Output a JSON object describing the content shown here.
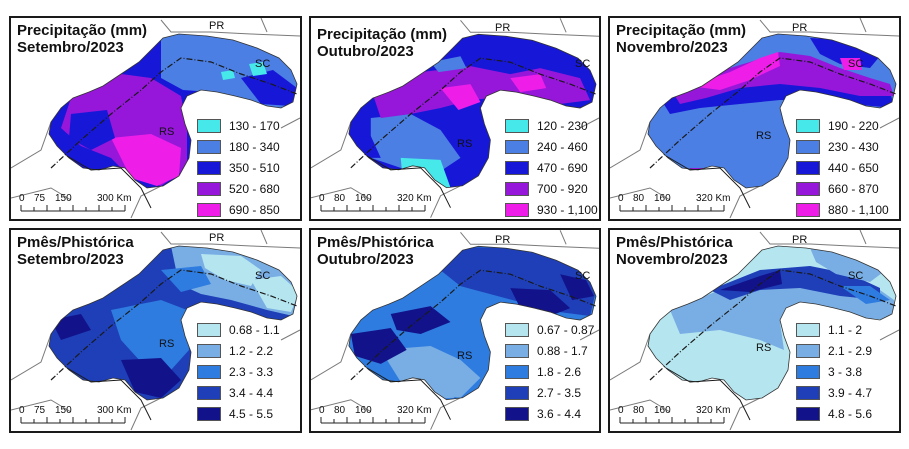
{
  "colors": {
    "p1": "#46e8ea",
    "p2": "#4b7fe3",
    "p3": "#1717d8",
    "p4": "#9617d9",
    "p5": "#ee1ee8",
    "r1": "#b5e6f0",
    "r2": "#79aee4",
    "r3": "#2e7ce0",
    "r4": "#1e3fb8",
    "r5": "#12128a",
    "border": "#7a7a7a",
    "river": "#1a1a1a"
  },
  "panels": [
    {
      "id": "prec-set",
      "title": [
        "Precipitação (mm)",
        "Setembro/2023"
      ],
      "labels": {
        "pr": "PR",
        "sc": "SC",
        "rs": "RS"
      },
      "legend": [
        {
          "label": "130 - 170",
          "color": "#46e8ea"
        },
        {
          "label": "180 - 340",
          "color": "#4b7fe3"
        },
        {
          "label": "350 - 510",
          "color": "#1717d8"
        },
        {
          "label": "520 - 680",
          "color": "#9617d9"
        },
        {
          "label": "690 - 850",
          "color": "#ee1ee8"
        }
      ],
      "scale": [
        "0",
        "75",
        "150",
        "300 Km"
      ]
    },
    {
      "id": "prec-out",
      "title": [
        "Precipitação (mm)",
        "Outubro/2023"
      ],
      "labels": {
        "pr": "PR",
        "sc": "SC",
        "rs": "RS"
      },
      "legend": [
        {
          "label": "120 - 230",
          "color": "#46e8ea"
        },
        {
          "label": "240 - 460",
          "color": "#4b7fe3"
        },
        {
          "label": "470 - 690",
          "color": "#1717d8"
        },
        {
          "label": "700 - 920",
          "color": "#9617d9"
        },
        {
          "label": "930 - 1,100",
          "color": "#ee1ee8"
        }
      ],
      "scale": [
        "0",
        "80",
        "160",
        "320 Km"
      ]
    },
    {
      "id": "prec-nov",
      "title": [
        "Precipitação (mm)",
        "Novembro/2023"
      ],
      "labels": {
        "pr": "PR",
        "sc": "SC",
        "rs": "RS"
      },
      "legend": [
        {
          "label": "190 - 220",
          "color": "#46e8ea"
        },
        {
          "label": "230 - 430",
          "color": "#4b7fe3"
        },
        {
          "label": "440 - 650",
          "color": "#1717d8"
        },
        {
          "label": "660 - 870",
          "color": "#9617d9"
        },
        {
          "label": "880 - 1,100",
          "color": "#ee1ee8"
        }
      ],
      "scale": [
        "0",
        "80",
        "160",
        "320 Km"
      ]
    },
    {
      "id": "ratio-set",
      "title": [
        "Pmês/Phistórica",
        "Setembro/2023"
      ],
      "labels": {
        "pr": "PR",
        "sc": "SC",
        "rs": "RS"
      },
      "legend": [
        {
          "label": "0.68 - 1.1",
          "color": "#b5e6f0"
        },
        {
          "label": "1.2 - 2.2",
          "color": "#79aee4"
        },
        {
          "label": "2.3 - 3.3",
          "color": "#2e7ce0"
        },
        {
          "label": "3.4 - 4.4",
          "color": "#1e3fb8"
        },
        {
          "label": "4.5 - 5.5",
          "color": "#12128a"
        }
      ],
      "scale": [
        "0",
        "75",
        "150",
        "300 Km"
      ]
    },
    {
      "id": "ratio-out",
      "title": [
        "Pmês/Phistórica",
        "Outubro/2023"
      ],
      "labels": {
        "pr": "PR",
        "sc": "SC",
        "rs": "RS"
      },
      "legend": [
        {
          "label": "0.67 - 0.87",
          "color": "#b5e6f0"
        },
        {
          "label": "0.88 - 1.7",
          "color": "#79aee4"
        },
        {
          "label": "1.8 - 2.6",
          "color": "#2e7ce0"
        },
        {
          "label": "2.7 - 3.5",
          "color": "#1e3fb8"
        },
        {
          "label": "3.6 - 4.4",
          "color": "#12128a"
        }
      ],
      "scale": [
        "0",
        "80",
        "160",
        "320 Km"
      ]
    },
    {
      "id": "ratio-nov",
      "title": [
        "Pmês/Phistórica",
        "Novembro/2023"
      ],
      "labels": {
        "pr": "PR",
        "sc": "SC",
        "rs": "RS"
      },
      "legend": [
        {
          "label": "1.1 - 2",
          "color": "#b5e6f0"
        },
        {
          "label": "2.1 - 2.9",
          "color": "#79aee4"
        },
        {
          "label": "3 - 3.8",
          "color": "#2e7ce0"
        },
        {
          "label": "3.9 - 4.7",
          "color": "#1e3fb8"
        },
        {
          "label": "4.8 - 5.6",
          "color": "#12128a"
        }
      ],
      "scale": [
        "0",
        "80",
        "160",
        "320 Km"
      ]
    }
  ]
}
